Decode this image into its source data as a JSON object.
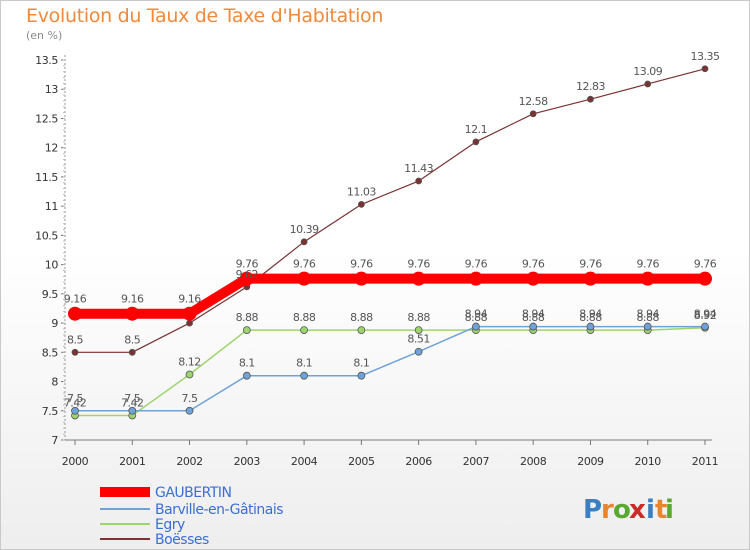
{
  "header": {
    "title": "Evolution du Taux de Taxe d'Habitation",
    "subtitle": "(en %)"
  },
  "chart_data": {
    "type": "line",
    "title": "Evolution du Taux de Taxe d'Habitation",
    "subtitle": "(en %)",
    "xlabel": "",
    "ylabel": "(en %)",
    "x": [
      "2000",
      "2001",
      "2002",
      "2003",
      "2004",
      "2005",
      "2006",
      "2007",
      "2008",
      "2009",
      "2010",
      "2011"
    ],
    "ylim": [
      7,
      13.5
    ],
    "yticks": [
      7,
      7.5,
      8,
      8.5,
      9,
      9.5,
      10,
      10.5,
      11,
      11.5,
      12,
      12.5,
      13,
      13.5
    ],
    "ytick_labels": [
      "7",
      "7.5",
      "8",
      "8.5",
      "9",
      "9.5",
      "10",
      "10.5",
      "11",
      "11.5",
      "12",
      "12.5",
      "13",
      "13.5"
    ],
    "grid": false,
    "legend_position": "bottom-left",
    "series": [
      {
        "name": "GAUBERTIN",
        "color": "#ff0000",
        "legend_color": "#3b6ed6",
        "values": [
          9.16,
          9.16,
          9.16,
          9.76,
          9.76,
          9.76,
          9.76,
          9.76,
          9.76,
          9.76,
          9.76,
          9.76
        ],
        "labels": [
          "9.16",
          "9.16",
          "9.16",
          "9.76",
          "9.76",
          "9.76",
          "9.76",
          "9.76",
          "9.76",
          "9.76",
          "9.76",
          "9.76"
        ]
      },
      {
        "name": "Barville-en-Gâtinais",
        "color": "#6fa2d6",
        "legend_color": "#3b6ed6",
        "values": [
          7.5,
          7.5,
          7.5,
          8.1,
          8.1,
          8.1,
          8.51,
          8.94,
          8.94,
          8.94,
          8.94,
          8.94
        ],
        "labels": [
          "7.5",
          "7.5",
          "7.5",
          "8.1",
          "8.1",
          "8.1",
          "8.51",
          "8.94",
          "8.94",
          "8.94",
          "8.94",
          "8.94"
        ]
      },
      {
        "name": "Egry",
        "color": "#9ed46e",
        "legend_color": "#3b6ed6",
        "values": [
          7.42,
          7.42,
          8.12,
          8.88,
          8.88,
          8.88,
          8.88,
          8.88,
          8.88,
          8.88,
          8.88,
          8.92
        ],
        "labels": [
          "7.42",
          "7.42",
          "8.12",
          "8.88",
          "8.88",
          "8.88",
          "8.88",
          "8.88",
          "8.88",
          "8.88",
          "8.88",
          "8.92"
        ]
      },
      {
        "name": "Boësses",
        "color": "#7a3232",
        "legend_color": "#3b6ed6",
        "values": [
          8.5,
          8.5,
          9.0,
          9.62,
          10.39,
          11.03,
          11.43,
          12.1,
          12.58,
          12.83,
          13.09,
          13.35
        ],
        "labels": [
          "8.5",
          "8.5",
          "",
          "9.62",
          "10.39",
          "11.03",
          "11.43",
          "12.1",
          "12.58",
          "12.83",
          "13.09",
          "13.35"
        ]
      }
    ]
  },
  "logo": {
    "text": "Proxiti",
    "letters": [
      "P",
      "r",
      "o",
      "x",
      "i",
      "t",
      "i"
    ],
    "colors": [
      "#3a7fc1",
      "#e8862d",
      "#5aa832",
      "#cc2b2b",
      "#3a7fc1",
      "#e8862d",
      "#5aa832"
    ]
  }
}
